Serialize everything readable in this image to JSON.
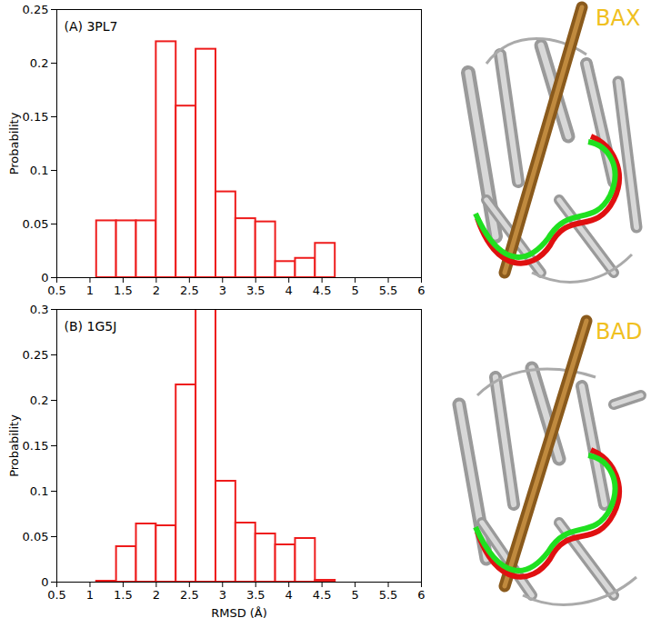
{
  "chart_data": [
    {
      "type": "histogram",
      "title": "(A) 3PL7",
      "y_label": "Probability",
      "color": "#ee1c1c",
      "bins": [
        0.8,
        1.1,
        1.4,
        1.7,
        2.0,
        2.3,
        2.6,
        2.9,
        3.2,
        3.5,
        3.8,
        4.1,
        4.4,
        4.7,
        5.0,
        5.3
      ],
      "counts": [
        0,
        0.053,
        0.053,
        0.053,
        0.22,
        0.16,
        0.213,
        0.08,
        0.055,
        0.052,
        0.015,
        0.018,
        0.032,
        0,
        0
      ],
      "xlim": [
        0.5,
        6
      ],
      "xticks": [
        0.5,
        1,
        1.5,
        2,
        2.5,
        3,
        3.5,
        4,
        4.5,
        5,
        5.5,
        6
      ],
      "ylim": [
        0,
        0.25
      ],
      "yticks": [
        0,
        0.05,
        0.1,
        0.15,
        0.2,
        0.25
      ],
      "grid": false,
      "annotations": [
        "BAX"
      ]
    },
    {
      "type": "histogram",
      "title": "(B) 1G5J",
      "x_label": "RMSD (Å)",
      "y_label": "Probability",
      "color": "#ee1c1c",
      "bins": [
        0.8,
        1.1,
        1.4,
        1.7,
        2.0,
        2.3,
        2.6,
        2.9,
        3.2,
        3.5,
        3.8,
        4.1,
        4.4,
        4.7,
        5.0,
        5.3
      ],
      "counts": [
        0,
        0.001,
        0.039,
        0.064,
        0.062,
        0.217,
        0.3,
        0.111,
        0.065,
        0.053,
        0.041,
        0.048,
        0.002,
        0,
        0
      ],
      "xlim": [
        0.5,
        6
      ],
      "xticks": [
        0.5,
        1,
        1.5,
        2,
        2.5,
        3,
        3.5,
        4,
        4.5,
        5,
        5.5,
        6
      ],
      "ylim": [
        0,
        0.3
      ],
      "yticks": [
        0,
        0.05,
        0.1,
        0.15,
        0.2,
        0.25,
        0.3
      ],
      "grid": false,
      "annotations": [
        "BAD"
      ]
    }
  ]
}
